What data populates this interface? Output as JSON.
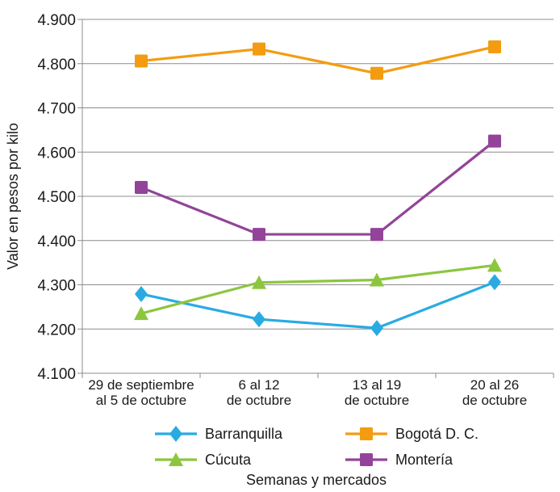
{
  "chart_data": {
    "type": "line",
    "categories": [
      [
        "29 de septiembre",
        "al 5 de octubre"
      ],
      [
        "6 al 12",
        "de octubre"
      ],
      [
        "13 al 19",
        "de octubre"
      ],
      [
        "20 al 26",
        "de octubre"
      ]
    ],
    "series": [
      {
        "name": "Barranquilla",
        "color": "#29abe2",
        "marker": "diamond",
        "values": [
          4279,
          4222,
          4202,
          4306
        ]
      },
      {
        "name": "Bogotá D. C.",
        "color": "#f39c12",
        "marker": "square",
        "values": [
          4806,
          4833,
          4778,
          4838
        ]
      },
      {
        "name": "Cúcuta",
        "color": "#8cc63f",
        "marker": "triangle",
        "values": [
          4235,
          4305,
          4311,
          4344
        ]
      },
      {
        "name": "Montería",
        "color": "#93449a",
        "marker": "square",
        "values": [
          4520,
          4414,
          4414,
          4625
        ]
      }
    ],
    "y_ticks": [
      "4.100",
      "4.200",
      "4.300",
      "4.400",
      "4.500",
      "4.600",
      "4.700",
      "4.800",
      "4.900"
    ],
    "ylim": [
      4100,
      4900
    ],
    "ylabel": "Valor en pesos por kilo",
    "xlabel": "Semanas y mercados",
    "grid": true,
    "legend_position": "bottom"
  }
}
